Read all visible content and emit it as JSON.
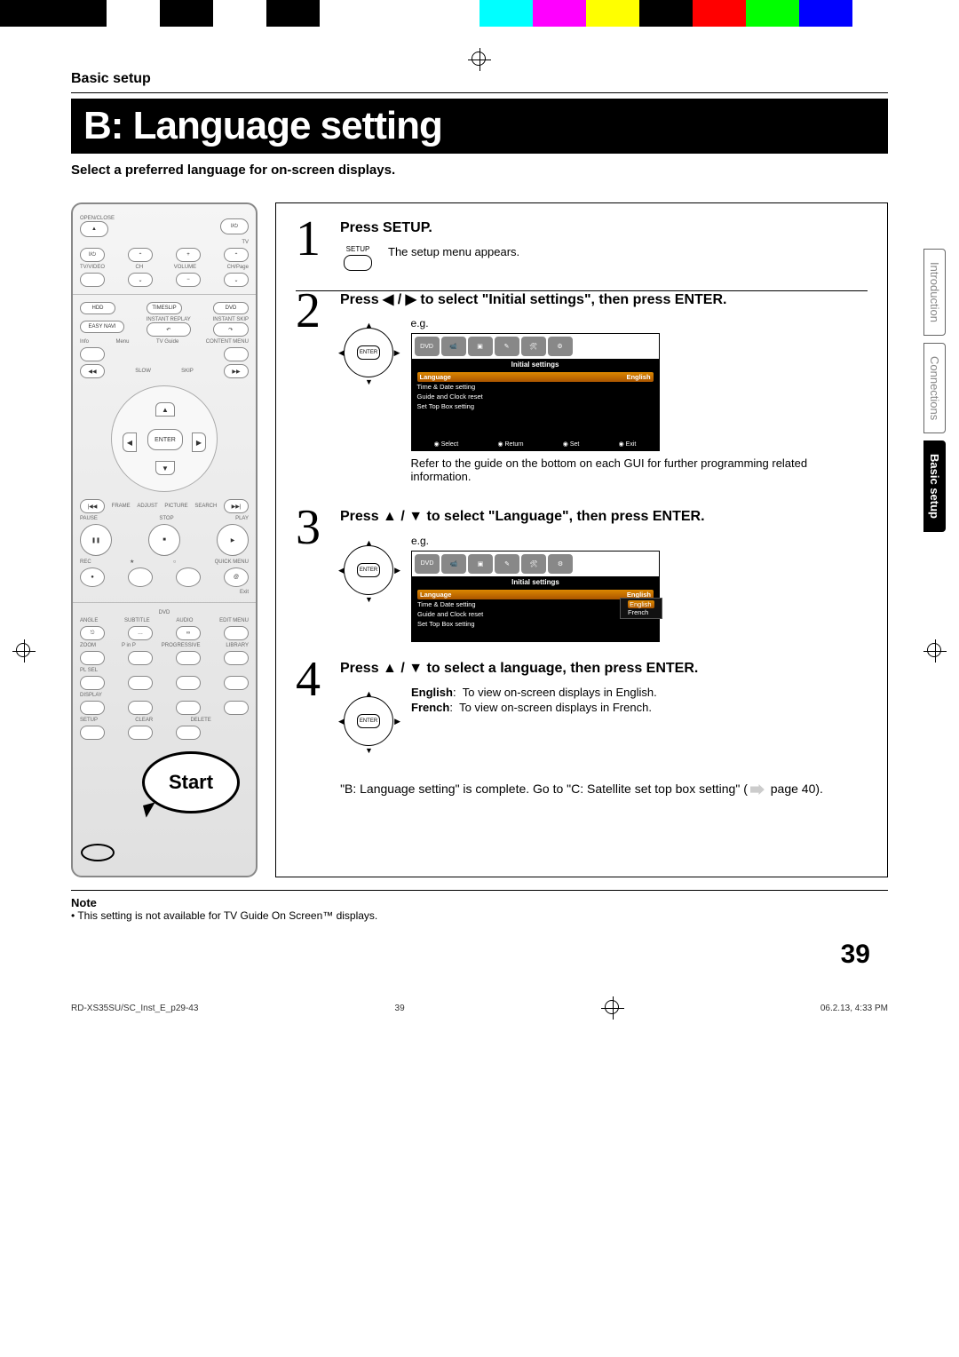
{
  "colorbar": [
    "#000000",
    "#000000",
    "#ffffff",
    "#000000",
    "#ffffff",
    "#000000",
    "#ffffff",
    "#ffffff",
    "#ffffff",
    "#00ffff",
    "#ff00ff",
    "#ffff00",
    "#000000",
    "#ff0000",
    "#00ff00",
    "#0000ff",
    "#ffffff",
    "#ffffff"
  ],
  "section_label": "Basic setup",
  "title": "B: Language setting",
  "subtitle": "Select a preferred language for on-screen displays.",
  "start_label": "Start",
  "remote": {
    "labels": {
      "open_close": "OPEN/CLOSE",
      "tv": "TV",
      "tvvideo": "TV/VIDEO",
      "ch": "CH",
      "volume": "VOLUME",
      "chpage": "CH/Page",
      "hdd": "HDD",
      "timeslip": "TIMESLIP",
      "dvd": "DVD",
      "easynavi": "EASY NAVI",
      "instantreplay": "INSTANT REPLAY",
      "instantskip": "INSTANT SKIP",
      "menu": "Menu",
      "tvguide": "TV Guide",
      "info": "Info",
      "contentmenu": "CONTENT MENU",
      "slow": "SLOW",
      "skip": "SKIP",
      "enter": "ENTER",
      "frame": "FRAME",
      "adjust": "ADJUST",
      "picture": "PICTURE",
      "search": "SEARCH",
      "pause": "PAUSE",
      "stop": "STOP",
      "play": "PLAY",
      "rec": "REC",
      "quickmenu": "QUICK MENU",
      "exit": "Exit",
      "dvd2": "DVD",
      "angle": "ANGLE",
      "subtitle": "SUBTITLE",
      "audio": "AUDIO",
      "editmenu": "EDIT MENU",
      "zoom": "ZOOM",
      "pinp": "P in P",
      "progressive": "PROGRESSIVE",
      "library": "LIBRARY",
      "plsel": "PL SEL",
      "display": "DISPLAY",
      "setup": "SETUP",
      "clear": "CLEAR",
      "delete": "DELETE"
    }
  },
  "steps": [
    {
      "num": "1",
      "title": "Press SETUP.",
      "text": "The setup menu appears.",
      "button_label": "SETUP"
    },
    {
      "num": "2",
      "title": "Press ◀ / ▶ to select \"Initial settings\", then press ENTER.",
      "dpad_label": "ENTER",
      "eg": "e.g.",
      "gui": {
        "header": "Initial settings",
        "rows": [
          {
            "label": "Language",
            "value": "English",
            "sel": true
          },
          {
            "label": "Time & Date setting",
            "value": ""
          },
          {
            "label": "Guide and Clock reset",
            "value": ""
          },
          {
            "label": "Set Top Box setting",
            "value": ""
          }
        ],
        "footer": [
          "Select",
          "Return",
          "Set",
          "Exit"
        ]
      },
      "note": "Refer to the guide on the bottom on each GUI for further programming related information."
    },
    {
      "num": "3",
      "title": "Press ▲ / ▼ to select \"Language\", then press ENTER.",
      "dpad_label": "ENTER",
      "eg": "e.g.",
      "gui": {
        "header": "Initial settings",
        "rows": [
          {
            "label": "Language",
            "value": "English",
            "sel": true
          },
          {
            "label": "Time & Date setting",
            "value": ""
          },
          {
            "label": "Guide and Clock reset",
            "value": ""
          },
          {
            "label": "Set Top Box setting",
            "value": ""
          }
        ],
        "popup": [
          "English",
          "French"
        ]
      }
    },
    {
      "num": "4",
      "title": "Press ▲ / ▼ to select a language, then press ENTER.",
      "dpad_label": "ENTER",
      "options": [
        {
          "name": "English",
          "desc": "To view on-screen displays in English."
        },
        {
          "name": "French",
          "desc": "To view on-screen displays in French."
        }
      ]
    }
  ],
  "side_tabs": [
    {
      "label": "Introduction",
      "active": false
    },
    {
      "label": "Connections",
      "active": false
    },
    {
      "label": "Basic setup",
      "active": true
    }
  ],
  "completion_pre": "\"B: Language setting\" is complete. Go to \"C: Satellite set top box setting\" (",
  "completion_post": " page 40).",
  "note_title": "Note",
  "note_text": "• This setting is not available for TV Guide On Screen™ displays.",
  "page_number": "39",
  "footer": {
    "left": "RD-XS35SU/SC_Inst_E_p29-43",
    "mid": "39",
    "right": "06.2.13, 4:33 PM"
  }
}
